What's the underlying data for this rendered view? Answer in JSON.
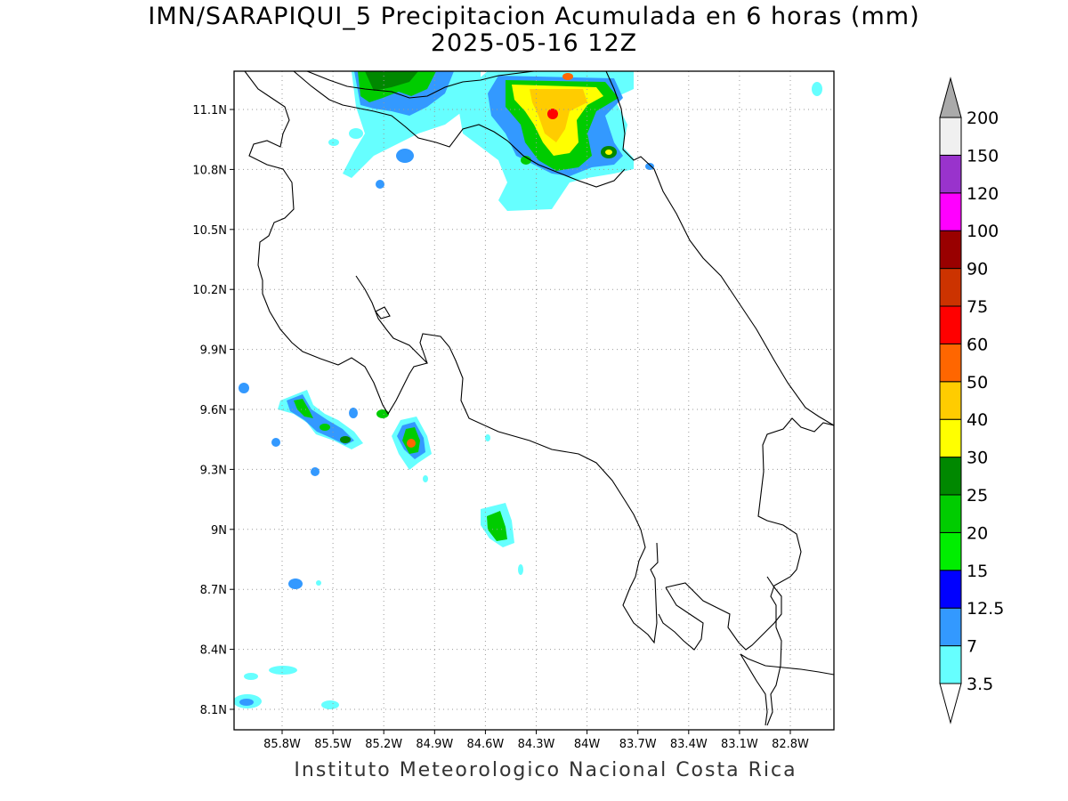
{
  "title_line1": "IMN/SARAPIQUI_5 Precipitacion Acumulada en 6 horas (mm)",
  "title_line2": "2025-05-16 12Z",
  "footer": "Instituto Meteorologico Nacional Costa Rica",
  "map": {
    "lon_range": [
      -86.05,
      -82.55
    ],
    "lat_range": [
      8.0,
      11.3
    ],
    "grid": "dotted",
    "lon_ticks": [
      "85.8W",
      "85.5W",
      "85.2W",
      "84.9W",
      "84.6W",
      "84.3W",
      "84W",
      "83.7W",
      "83.4W",
      "83.1W",
      "82.8W"
    ],
    "lat_ticks": [
      "8.1N",
      "8.4N",
      "8.7N",
      "9N",
      "9.3N",
      "9.6N",
      "9.9N",
      "10.2N",
      "10.5N",
      "10.8N",
      "11.1N"
    ]
  },
  "colorbar": {
    "levels": [
      "3.5",
      "7",
      "12.5",
      "15",
      "20",
      "25",
      "30",
      "40",
      "50",
      "60",
      "75",
      "90",
      "100",
      "120",
      "150",
      "200"
    ],
    "colors": [
      "#66ffff",
      "#3399ff",
      "#0000ff",
      "#00ee00",
      "#00cc00",
      "#008800",
      "#ffff00",
      "#ffcc00",
      "#ff6600",
      "#ff0000",
      "#cc3300",
      "#990000",
      "#ff00ff",
      "#9933cc",
      "#f0f0f0",
      "#aaaaaa"
    ]
  }
}
